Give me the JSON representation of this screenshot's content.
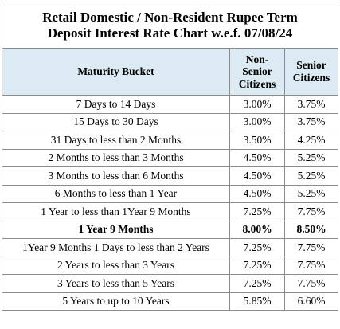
{
  "title_line1": "Retail Domestic / Non-Resident Rupee Term",
  "title_line2": "Deposit Interest Rate Chart w.e.f. 07/08/24",
  "columns": {
    "maturity": "Maturity Bucket",
    "non_senior_l1": "Non-",
    "non_senior_l2": "Senior",
    "non_senior_l3": "Citizens",
    "senior_l1": "Senior",
    "senior_l2": "Citizens"
  },
  "rows": [
    {
      "bucket": "7 Days to 14 Days",
      "non_senior": "3.00%",
      "senior": "3.75%"
    },
    {
      "bucket": "15 Days to 30 Days",
      "non_senior": "3.00%",
      "senior": "3.75%"
    },
    {
      "bucket": "31 Days to less than 2 Months",
      "non_senior": "3.50%",
      "senior": "4.25%"
    },
    {
      "bucket": "2 Months to less than 3 Months",
      "non_senior": "4.50%",
      "senior": "5.25%"
    },
    {
      "bucket": "3 Months to less than 6 Months",
      "non_senior": "4.50%",
      "senior": "5.25%"
    },
    {
      "bucket": "6 Months to less than 1 Year",
      "non_senior": "4.50%",
      "senior": "5.25%"
    },
    {
      "bucket": "1 Year to less than 1Year 9 Months",
      "non_senior": "7.25%",
      "senior": "7.75%"
    },
    {
      "bucket": "1 Year 9 Months",
      "non_senior": "8.00%",
      "senior": "8.50%"
    },
    {
      "bucket": "1Year 9 Months 1 Days to less than 2 Years",
      "non_senior": "7.25%",
      "senior": "7.75%"
    },
    {
      "bucket": "2 Years to less than 3 Years",
      "non_senior": "7.25%",
      "senior": "7.75%"
    },
    {
      "bucket": "3 Years to less than 5 Years",
      "non_senior": "7.25%",
      "senior": "7.75%"
    },
    {
      "bucket": "5 Years to up to 10 Years",
      "non_senior": "5.85%",
      "senior": "6.60%"
    }
  ]
}
